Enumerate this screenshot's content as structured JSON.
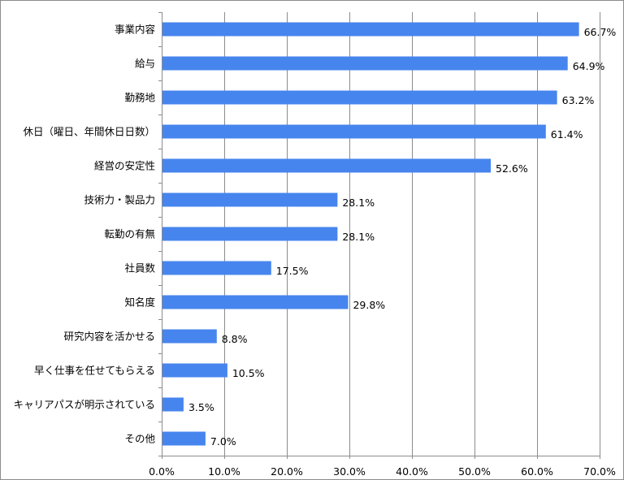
{
  "chart_data": {
    "type": "bar",
    "orientation": "horizontal",
    "categories": [
      "事業内容",
      "給与",
      "勤務地",
      "休日（曜日、年間休日日数）",
      "経営の安定性",
      "技術力・製品力",
      "転勤の有無",
      "社員数",
      "知名度",
      "研究内容を活かせる",
      "早く仕事を任せてもらえる",
      "キャリアパスが明示されている",
      "その他"
    ],
    "values": [
      66.7,
      64.9,
      63.2,
      61.4,
      52.6,
      28.1,
      28.1,
      17.5,
      29.8,
      8.8,
      10.5,
      3.5,
      7.0
    ],
    "value_labels": [
      "66.7%",
      "64.9%",
      "63.2%",
      "61.4%",
      "52.6%",
      "28.1%",
      "28.1%",
      "17.5%",
      "29.8%",
      "8.8%",
      "10.5%",
      "3.5%",
      "7.0%"
    ],
    "x_ticks": [
      0,
      10,
      20,
      30,
      40,
      50,
      60,
      70
    ],
    "x_tick_labels": [
      "0.0%",
      "10.0%",
      "20.0%",
      "30.0%",
      "40.0%",
      "50.0%",
      "60.0%",
      "70.0%"
    ],
    "xlim": [
      0,
      70
    ],
    "grid": "vertical",
    "legend": "none",
    "title": "",
    "xlabel": "",
    "ylabel": "",
    "colors": {
      "bar": "#4785ee",
      "grid": "#8c8c8c",
      "axis": "#8c8c8c",
      "text": "#000000"
    }
  }
}
